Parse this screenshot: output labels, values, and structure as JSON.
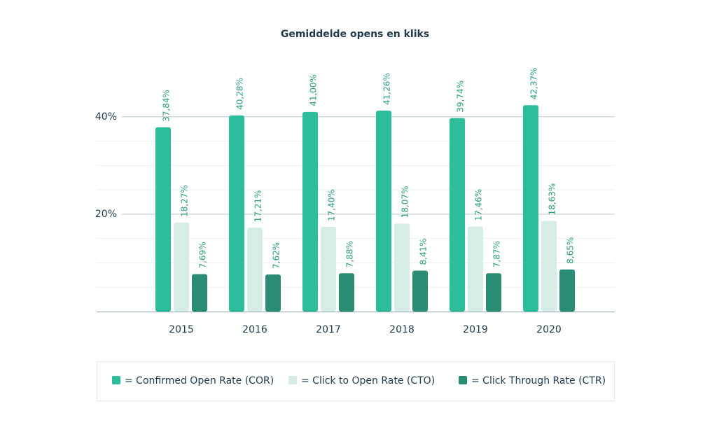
{
  "chart_data": {
    "type": "bar",
    "title": "Gemiddelde opens en kliks",
    "categories": [
      "2015",
      "2016",
      "2017",
      "2018",
      "2019",
      "2020"
    ],
    "series": [
      {
        "name": "= Confirmed Open Rate (COR)",
        "color": "#2ebd9b",
        "values": [
          37.84,
          40.28,
          41.0,
          41.26,
          39.74,
          42.37
        ],
        "value_labels": [
          "37,84%",
          "40,28%",
          "41,00%",
          "41,26%",
          "39,74%",
          "42,37%"
        ]
      },
      {
        "name": "= Click to Open Rate (CTO)",
        "color": "#d6ede6",
        "values": [
          18.27,
          17.21,
          17.4,
          18.07,
          17.46,
          18.63
        ],
        "value_labels": [
          "18,27%",
          "17,21%",
          "17,40%",
          "18,07%",
          "17,46%",
          "18,63%"
        ]
      },
      {
        "name": "= Click Through Rate (CTR)",
        "color": "#2b8c74",
        "values": [
          7.69,
          7.62,
          7.88,
          8.41,
          7.87,
          8.65
        ],
        "value_labels": [
          "7,69%",
          "7,62%",
          "7,88%",
          "8,41%",
          "7,87%",
          "8,65%"
        ]
      }
    ],
    "ylim": [
      0,
      45
    ],
    "yticks": [
      {
        "value": 20,
        "label": "20%"
      },
      {
        "value": 40,
        "label": "40%"
      }
    ],
    "minor_grid": [
      5,
      10,
      15,
      25,
      30,
      35
    ],
    "grid": true,
    "legend": "bottom"
  }
}
